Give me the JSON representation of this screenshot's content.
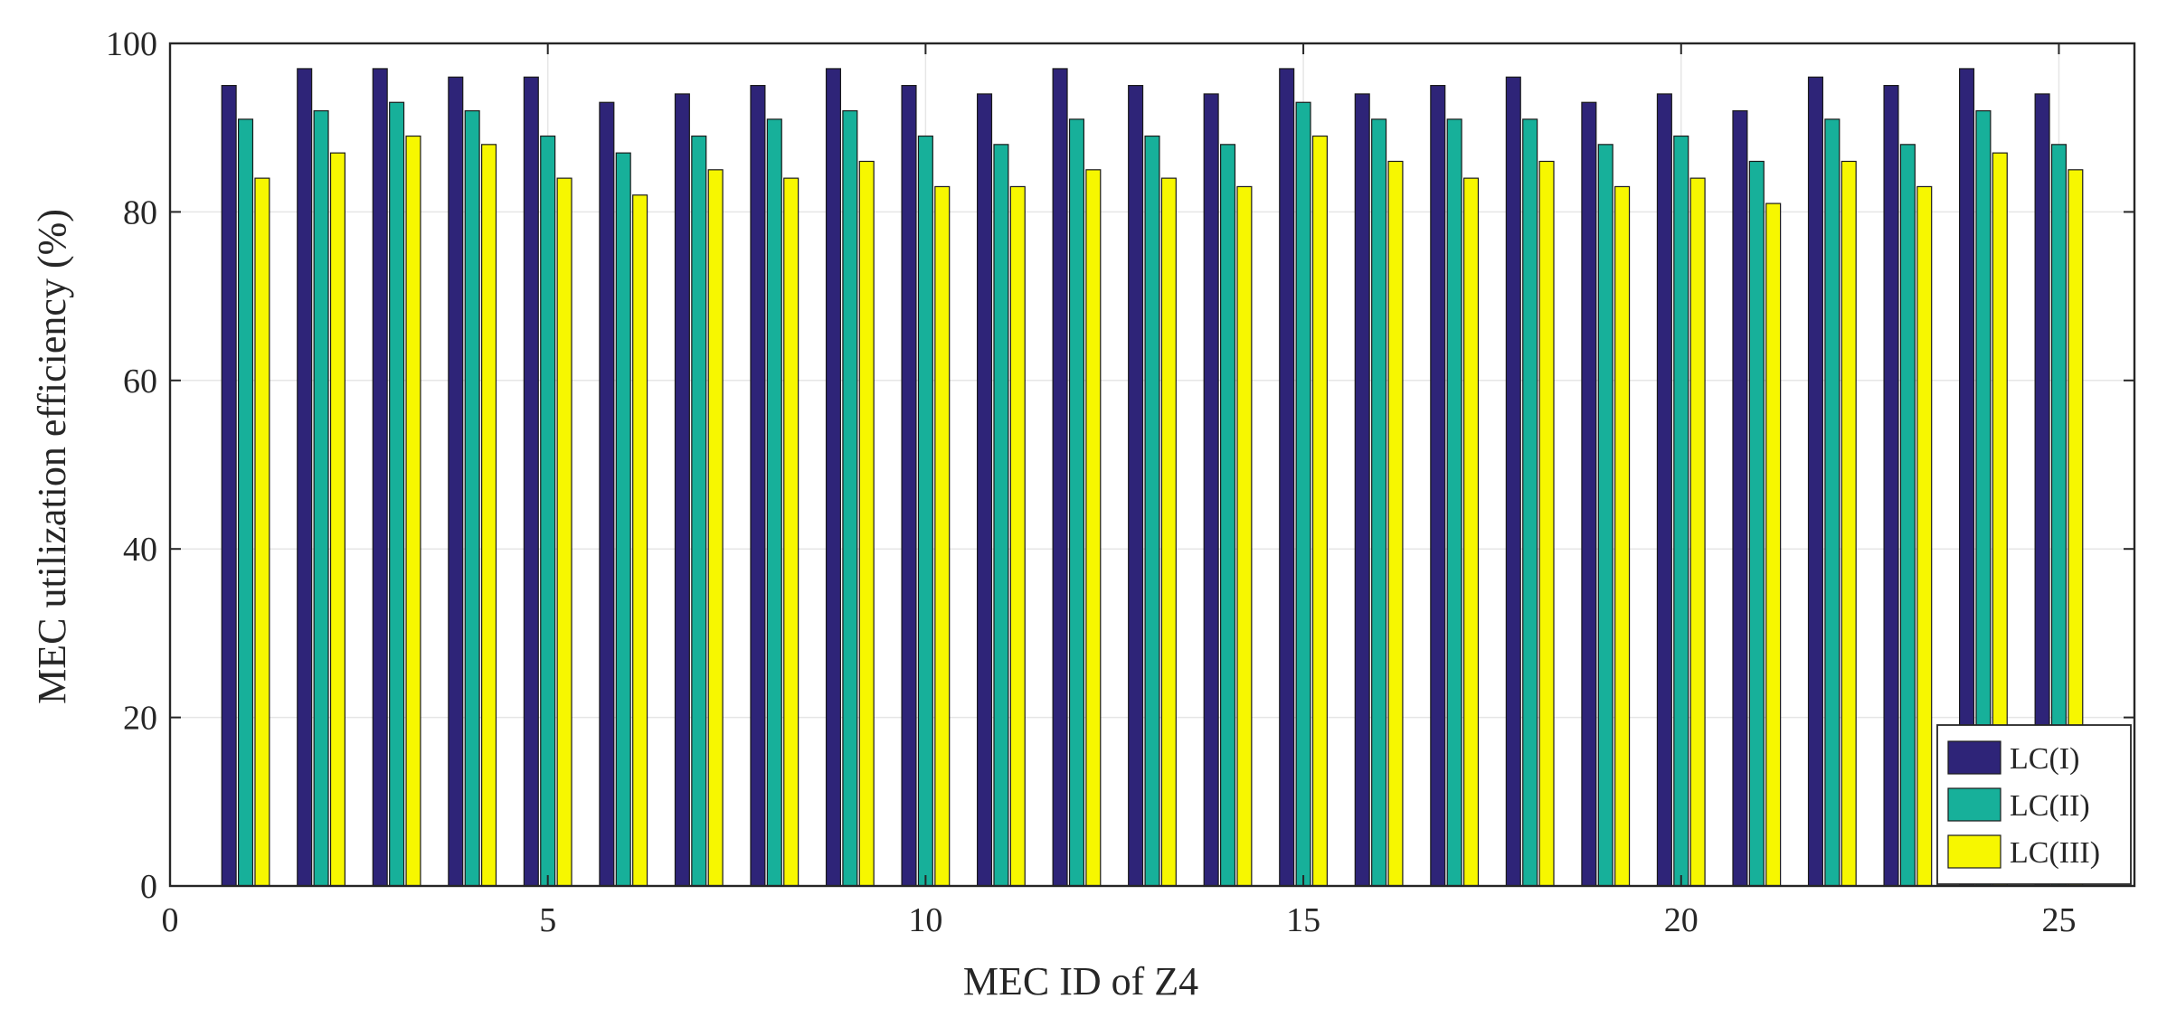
{
  "chart_data": {
    "type": "bar",
    "title": "",
    "xlabel": "MEC ID of Z4",
    "ylabel": "MEC utilization efficiency (%)",
    "x": [
      1,
      2,
      3,
      4,
      5,
      6,
      7,
      8,
      9,
      10,
      11,
      12,
      13,
      14,
      15,
      16,
      17,
      18,
      19,
      20,
      21,
      22,
      23,
      24,
      25
    ],
    "xlim": [
      0,
      26
    ],
    "ylim": [
      0,
      100
    ],
    "xticks": [
      0,
      5,
      10,
      15,
      20,
      25
    ],
    "yticks": [
      0,
      20,
      40,
      60,
      80,
      100
    ],
    "grid": true,
    "legend_position": "bottom-right",
    "series": [
      {
        "name": "LC(I)",
        "color": "#2e2478",
        "values": [
          95,
          97,
          97,
          96,
          96,
          93,
          94,
          95,
          97,
          95,
          94,
          97,
          95,
          94,
          97,
          94,
          95,
          96,
          93,
          94,
          92,
          96,
          95,
          97,
          94
        ]
      },
      {
        "name": "LC(II)",
        "color": "#17b09a",
        "values": [
          91,
          92,
          93,
          92,
          89,
          87,
          89,
          91,
          92,
          89,
          88,
          91,
          89,
          88,
          93,
          91,
          91,
          91,
          88,
          89,
          86,
          91,
          88,
          92,
          88
        ]
      },
      {
        "name": "LC(III)",
        "color": "#f7f700",
        "values": [
          84,
          87,
          89,
          88,
          84,
          82,
          85,
          84,
          86,
          83,
          83,
          85,
          84,
          83,
          89,
          86,
          84,
          86,
          83,
          84,
          81,
          86,
          83,
          87,
          85
        ]
      }
    ]
  }
}
